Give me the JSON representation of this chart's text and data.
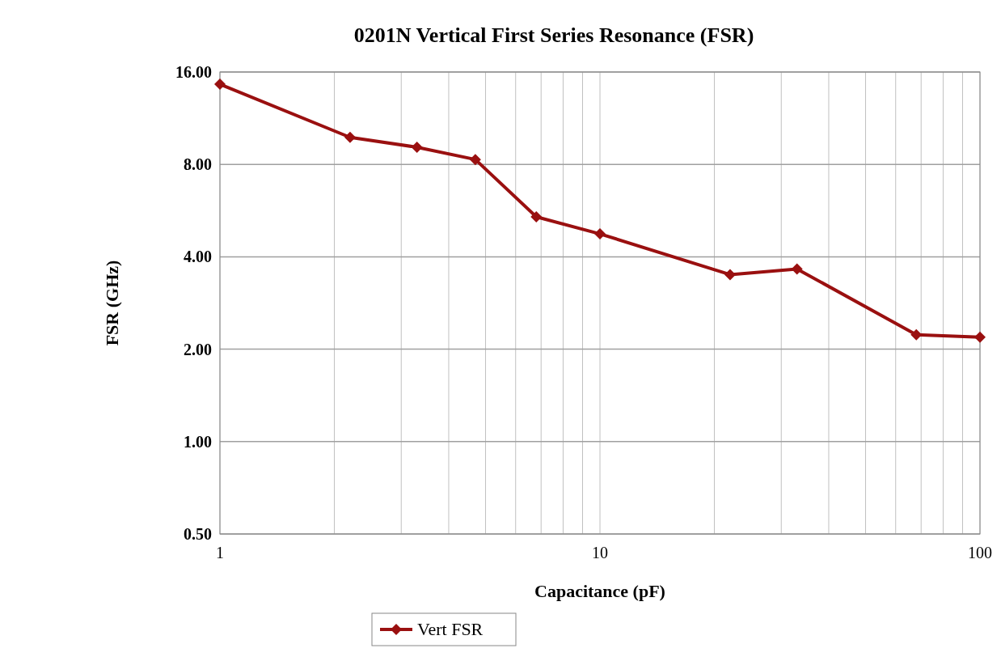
{
  "chart_data": {
    "type": "line",
    "title": "0201N Vertical First Series Resonance (FSR)",
    "xlabel": "Capacitance (pF)",
    "ylabel": "FSR (GHz)",
    "log": "xy",
    "x": [
      1,
      2.2,
      3.3,
      4.7,
      6.8,
      10,
      22,
      33,
      68,
      100
    ],
    "series": [
      {
        "name": "Vert FSR",
        "color": "#9a1010",
        "values": [
          14.6,
          9.8,
          9.1,
          8.3,
          5.4,
          4.75,
          3.5,
          3.65,
          2.23,
          2.19
        ]
      }
    ],
    "xlim": [
      1,
      100
    ],
    "xticks": [
      1,
      {
        "value": 2,
        "label": null
      },
      {
        "value": 3,
        "label": null
      },
      {
        "value": 4,
        "label": null
      },
      {
        "value": 5,
        "label": null
      },
      {
        "value": 6,
        "label": null
      },
      {
        "value": 7,
        "label": null
      },
      {
        "value": 8,
        "label": null
      },
      {
        "value": 9,
        "label": null
      },
      10,
      {
        "value": 20,
        "label": null
      },
      {
        "value": 30,
        "label": null
      },
      {
        "value": 40,
        "label": null
      },
      {
        "value": 50,
        "label": null
      },
      {
        "value": 60,
        "label": null
      },
      {
        "value": 70,
        "label": null
      },
      {
        "value": 80,
        "label": null
      },
      {
        "value": 90,
        "label": null
      },
      100
    ],
    "ylim": [
      0.5,
      16
    ],
    "yticks": [
      {
        "value": 0.5,
        "label": "0.50"
      },
      {
        "value": 1,
        "label": "1.00"
      },
      {
        "value": 2,
        "label": "2.00"
      },
      {
        "value": 4,
        "label": "4.00"
      },
      {
        "value": 8,
        "label": "8.00"
      },
      {
        "value": 16,
        "label": "16.00"
      }
    ],
    "grid": true,
    "legend": "bottom",
    "marker": "diamond",
    "line_style": "solid"
  }
}
